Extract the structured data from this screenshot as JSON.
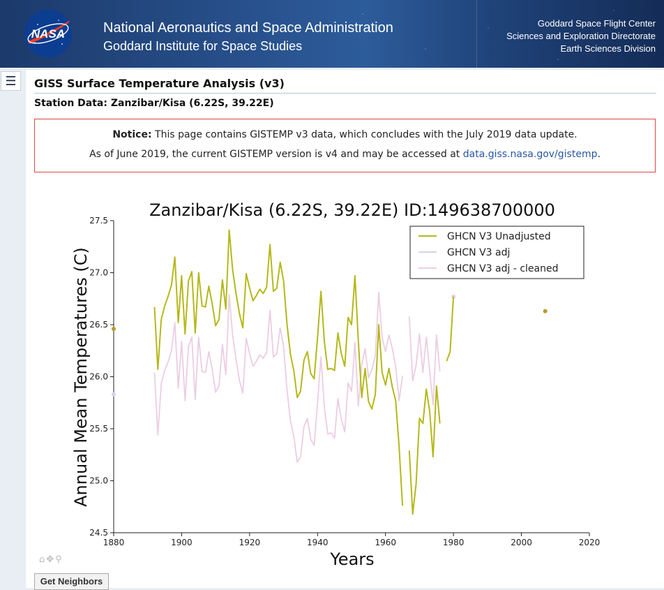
{
  "header": {
    "logo_text": "NASA",
    "title": "National Aeronautics and Space Administration",
    "subtitle": "Goddard Institute for Space Studies",
    "right_lines": [
      "Goddard Space Flight Center",
      "Sciences and Exploration Directorate",
      "Earth Sciences Division"
    ]
  },
  "page": {
    "title": "GISS Surface Temperature Analysis (v3)",
    "station": "Station Data: Zanzibar/Kisa (6.22S, 39.22E)"
  },
  "notice": {
    "bold": "Notice:",
    "line1": " This page contains GISTEMP v3 data, which concludes with the July 2019 data update.",
    "line2_prefix": "As of June 2019, the current GISTEMP version is v4 and may be accessed at ",
    "link_text": "data.giss.nasa.gov/gistemp",
    "line2_suffix": "."
  },
  "buttons": {
    "get_neighbors": "Get Neighbors"
  },
  "colors": {
    "unadjusted": "#b5b81a",
    "adj": "#d8d0ec",
    "adj_cleaned": "#eccde2",
    "notice_border": "#d44"
  },
  "chart_data": {
    "type": "line",
    "title": "Zanzibar/Kisa (6.22S, 39.22E) ID:149638700000",
    "xlabel": "Years",
    "ylabel": "Annual Mean Temperatures (C)",
    "xlim": [
      1880,
      2020
    ],
    "ylim": [
      24.5,
      27.5
    ],
    "xticks": [
      1880,
      1900,
      1920,
      1940,
      1960,
      1980,
      2000,
      2020
    ],
    "yticks": [
      24.5,
      25.0,
      25.5,
      26.0,
      26.5,
      27.0,
      27.5
    ],
    "legend_position": "top-right",
    "series": [
      {
        "name": "GHCN V3 Unadjusted",
        "color": "#b5b81a",
        "segments": [
          [
            [
              1892,
              26.67
            ],
            [
              1893,
              26.07
            ],
            [
              1894,
              26.55
            ],
            [
              1895,
              26.68
            ],
            [
              1896,
              26.77
            ],
            [
              1897,
              26.88
            ],
            [
              1898,
              27.15
            ],
            [
              1899,
              26.52
            ],
            [
              1900,
              26.97
            ],
            [
              1901,
              26.41
            ],
            [
              1902,
              26.92
            ],
            [
              1903,
              27.01
            ],
            [
              1904,
              26.42
            ],
            [
              1905,
              27.0
            ],
            [
              1906,
              26.68
            ],
            [
              1907,
              26.67
            ],
            [
              1908,
              26.87
            ],
            [
              1909,
              26.7
            ],
            [
              1910,
              26.49
            ],
            [
              1911,
              26.55
            ],
            [
              1912,
              26.93
            ],
            [
              1913,
              26.65
            ],
            [
              1914,
              27.41
            ],
            [
              1915,
              27.03
            ],
            [
              1916,
              26.8
            ],
            [
              1917,
              26.61
            ],
            [
              1918,
              26.47
            ],
            [
              1919,
              26.99
            ],
            [
              1920,
              26.85
            ],
            [
              1921,
              26.73
            ],
            [
              1922,
              26.78
            ],
            [
              1923,
              26.84
            ],
            [
              1924,
              26.8
            ],
            [
              1925,
              26.86
            ],
            [
              1926,
              27.27
            ],
            [
              1927,
              26.82
            ],
            [
              1928,
              26.85
            ],
            [
              1929,
              27.1
            ],
            [
              1930,
              26.92
            ],
            [
              1931,
              26.51
            ],
            [
              1932,
              26.22
            ],
            [
              1933,
              26.06
            ],
            [
              1934,
              25.8
            ],
            [
              1935,
              25.86
            ],
            [
              1936,
              26.16
            ],
            [
              1937,
              26.24
            ],
            [
              1938,
              26.03
            ],
            [
              1939,
              25.98
            ],
            [
              1940,
              26.38
            ],
            [
              1941,
              26.82
            ],
            [
              1942,
              26.34
            ],
            [
              1943,
              26.07
            ],
            [
              1944,
              26.08
            ],
            [
              1945,
              26.06
            ],
            [
              1946,
              26.42
            ],
            [
              1947,
              26.22
            ],
            [
              1948,
              26.1
            ],
            [
              1949,
              26.57
            ],
            [
              1950,
              26.5
            ],
            [
              1951,
              26.97
            ],
            [
              1952,
              26.35
            ],
            [
              1953,
              25.8
            ],
            [
              1954,
              26.08
            ],
            [
              1955,
              25.76
            ],
            [
              1956,
              25.69
            ],
            [
              1957,
              25.83
            ],
            [
              1958,
              26.5
            ],
            [
              1959,
              26.04
            ],
            [
              1960,
              25.92
            ],
            [
              1961,
              26.08
            ],
            [
              1962,
              25.9
            ],
            [
              1963,
              25.77
            ],
            [
              1964,
              25.33
            ],
            [
              1965,
              24.76
            ]
          ],
          [
            [
              1967,
              25.29
            ],
            [
              1968,
              24.68
            ],
            [
              1969,
              24.97
            ],
            [
              1970,
              25.6
            ],
            [
              1971,
              25.55
            ],
            [
              1972,
              25.88
            ],
            [
              1973,
              25.67
            ],
            [
              1974,
              25.23
            ],
            [
              1975,
              25.91
            ],
            [
              1976,
              25.55
            ]
          ],
          [
            [
              1978,
              26.15
            ],
            [
              1979,
              26.24
            ],
            [
              1980,
              26.77
            ]
          ]
        ],
        "points": [
          [
            1880,
            26.46
          ],
          [
            2007,
            26.63
          ]
        ]
      },
      {
        "name": "GHCN V3 adj",
        "color": "#d8d0ec",
        "segments": [],
        "points": [
          [
            1880,
            25.83
          ]
        ]
      },
      {
        "name": "GHCN V3 adj - cleaned",
        "color": "#eccde2",
        "segments": [
          [
            [
              1892,
              26.04
            ],
            [
              1893,
              25.44
            ],
            [
              1894,
              25.93
            ],
            [
              1895,
              26.06
            ],
            [
              1896,
              26.14
            ],
            [
              1897,
              26.25
            ],
            [
              1898,
              26.52
            ],
            [
              1899,
              25.89
            ],
            [
              1900,
              26.34
            ],
            [
              1901,
              25.77
            ],
            [
              1902,
              26.29
            ],
            [
              1903,
              26.38
            ],
            [
              1904,
              25.78
            ],
            [
              1905,
              26.38
            ],
            [
              1906,
              26.05
            ],
            [
              1907,
              26.04
            ],
            [
              1908,
              26.24
            ],
            [
              1909,
              26.07
            ],
            [
              1910,
              25.85
            ],
            [
              1911,
              25.91
            ],
            [
              1912,
              26.31
            ],
            [
              1913,
              26.02
            ],
            [
              1914,
              26.79
            ],
            [
              1915,
              26.4
            ],
            [
              1916,
              26.17
            ],
            [
              1917,
              25.97
            ],
            [
              1918,
              25.84
            ],
            [
              1919,
              26.37
            ],
            [
              1920,
              26.22
            ],
            [
              1921,
              26.1
            ],
            [
              1922,
              26.15
            ],
            [
              1923,
              26.21
            ],
            [
              1924,
              26.18
            ],
            [
              1925,
              26.23
            ],
            [
              1926,
              26.64
            ],
            [
              1927,
              26.19
            ],
            [
              1928,
              26.22
            ],
            [
              1929,
              26.47
            ],
            [
              1930,
              26.29
            ],
            [
              1931,
              25.88
            ],
            [
              1932,
              25.58
            ],
            [
              1933,
              25.43
            ],
            [
              1934,
              25.18
            ],
            [
              1935,
              25.23
            ],
            [
              1936,
              25.52
            ],
            [
              1937,
              25.6
            ],
            [
              1938,
              25.4
            ],
            [
              1939,
              25.34
            ],
            [
              1940,
              25.75
            ],
            [
              1941,
              26.19
            ],
            [
              1942,
              25.71
            ],
            [
              1943,
              25.45
            ],
            [
              1944,
              25.46
            ],
            [
              1945,
              25.41
            ],
            [
              1946,
              25.79
            ],
            [
              1947,
              25.59
            ],
            [
              1948,
              25.47
            ],
            [
              1949,
              25.94
            ],
            [
              1950,
              25.86
            ],
            [
              1951,
              26.33
            ],
            [
              1952,
              25.72
            ],
            [
              1953,
              26.11
            ],
            [
              1954,
              26.27
            ],
            [
              1955,
              25.99
            ],
            [
              1956,
              26.07
            ],
            [
              1957,
              26.2
            ],
            [
              1958,
              26.81
            ],
            [
              1959,
              26.38
            ],
            [
              1960,
              26.24
            ],
            [
              1961,
              26.4
            ],
            [
              1962,
              26.27
            ],
            [
              1963,
              26.1
            ],
            [
              1964,
              25.77
            ],
            [
              1965,
              26.01
            ]
          ],
          [
            [
              1967,
              26.58
            ],
            [
              1968,
              25.96
            ],
            [
              1969,
              26.11
            ],
            [
              1970,
              26.41
            ],
            [
              1971,
              26.04
            ],
            [
              1972,
              26.38
            ],
            [
              1973,
              26.06
            ],
            [
              1974,
              25.73
            ],
            [
              1975,
              26.4
            ],
            [
              1976,
              26.05
            ]
          ]
        ],
        "points": [
          [
            1980,
            26.77
          ]
        ]
      }
    ]
  }
}
